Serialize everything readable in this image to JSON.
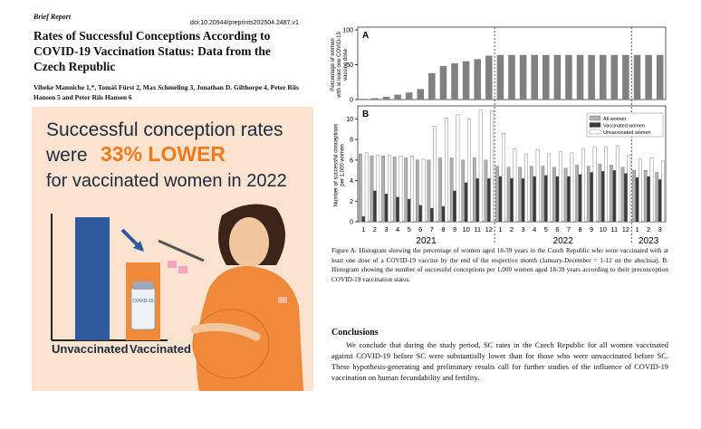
{
  "header": {
    "article_type": "Brief Report",
    "doi": "doi:10.20944/preprints202504.2487.v1",
    "title": "Rates of Successful Conceptions According to COVID-19 Vaccination Status: Data from the Czech Republic",
    "authors": "Vibeke Manniche 1,*, Tomáš Fürst 2, Max Schmeling 3, Jonathan D. Gilthorpe 4, Peter Riis Hansen 5 and Peter Riis Hansen 6"
  },
  "infographic": {
    "line1": "Successful conception rates",
    "line2": "were",
    "highlight": "33% LOWER",
    "line3": "for vaccinated women in 2022",
    "bar_labels": [
      "Unvaccinated",
      "Vaccinated"
    ],
    "vial_label": "COVID-19"
  },
  "chart_data": [
    {
      "type": "bar",
      "panel_label": "A",
      "y_label": [
        "Percentage of women",
        "with at least one COVID-19",
        "vaccine dose"
      ],
      "color": "#808080",
      "values": [
        1,
        2,
        4,
        7,
        10,
        15,
        38,
        48,
        52,
        55,
        58,
        63,
        64,
        64,
        64,
        64,
        64,
        64,
        64,
        64,
        64,
        64,
        64,
        64,
        64,
        64,
        64
      ],
      "ylim": [
        0,
        100
      ],
      "yticks": [
        0,
        50,
        100
      ]
    },
    {
      "type": "grouped_bar",
      "panel_label": "B",
      "y_label": [
        "Number of successful conceptions",
        "per 1,000 women"
      ],
      "categories": [
        "1",
        "2",
        "3",
        "4",
        "5",
        "6",
        "7",
        "8",
        "9",
        "10",
        "11",
        "12",
        "1",
        "2",
        "3",
        "4",
        "5",
        "6",
        "7",
        "8",
        "9",
        "10",
        "11",
        "12",
        "1",
        "2",
        "3"
      ],
      "x_groups": [
        "2021",
        "2022",
        "2023"
      ],
      "series": [
        {
          "name": "All women",
          "color": "#b0b0b0",
          "values": [
            6.6,
            6.4,
            6.4,
            6.3,
            6.2,
            6.0,
            6.0,
            6.2,
            6.2,
            6.0,
            6.2,
            6.0,
            5.4,
            5.3,
            5.3,
            5.4,
            5.4,
            5.3,
            5.2,
            5.5,
            5.4,
            5.6,
            5.5,
            5.3,
            5.0,
            5.0,
            4.8
          ]
        },
        {
          "name": "Vaccinated women",
          "color": "#3a3a3a",
          "values": [
            0.5,
            3.0,
            2.7,
            2.4,
            2.2,
            1.6,
            1.3,
            1.5,
            3.0,
            3.8,
            4.2,
            4.2,
            4.4,
            4.2,
            4.2,
            4.4,
            4.5,
            4.4,
            4.4,
            4.6,
            4.8,
            4.9,
            5.0,
            4.7,
            4.3,
            4.4,
            4.1
          ]
        },
        {
          "name": "Unvaccinated women",
          "color": "#ffffff",
          "values": [
            6.7,
            6.5,
            6.5,
            6.4,
            6.4,
            6.1,
            9.3,
            10.1,
            10.4,
            10.0,
            10.9,
            10.8,
            8.6,
            7.1,
            6.6,
            7.0,
            6.6,
            6.8,
            6.7,
            7.1,
            7.3,
            7.3,
            7.4,
            6.5,
            6.1,
            6.2,
            5.9
          ]
        }
      ],
      "ylim": [
        0,
        11
      ],
      "yticks": [
        0,
        2,
        4,
        6,
        8,
        10
      ],
      "legend": "upper-right"
    }
  ],
  "caption": "Figure A: Histogram showing the percentage of women aged 18-39 years in the Czech Republic who were vaccinated with at least one dose of a COVID-19 vaccine by the end of the respective month (January-December = 1-12 on the abscissa). B: Histogram showing the number of successful conceptions per 1,000 women aged 18-39 years according to their preconception COVID-19 vaccination status.",
  "conclusions": {
    "heading": "Conclusions",
    "text": "We conclude that during the study period, SC rates in the Czech Republic for all women vaccinated against COVID-19 before SC were substantially lower than for those who were unvaccinated before SC. These hypothesis-generating and preliminary results call for further studies of the influence of COVID-19 vaccination on human fecundability and fertility."
  }
}
